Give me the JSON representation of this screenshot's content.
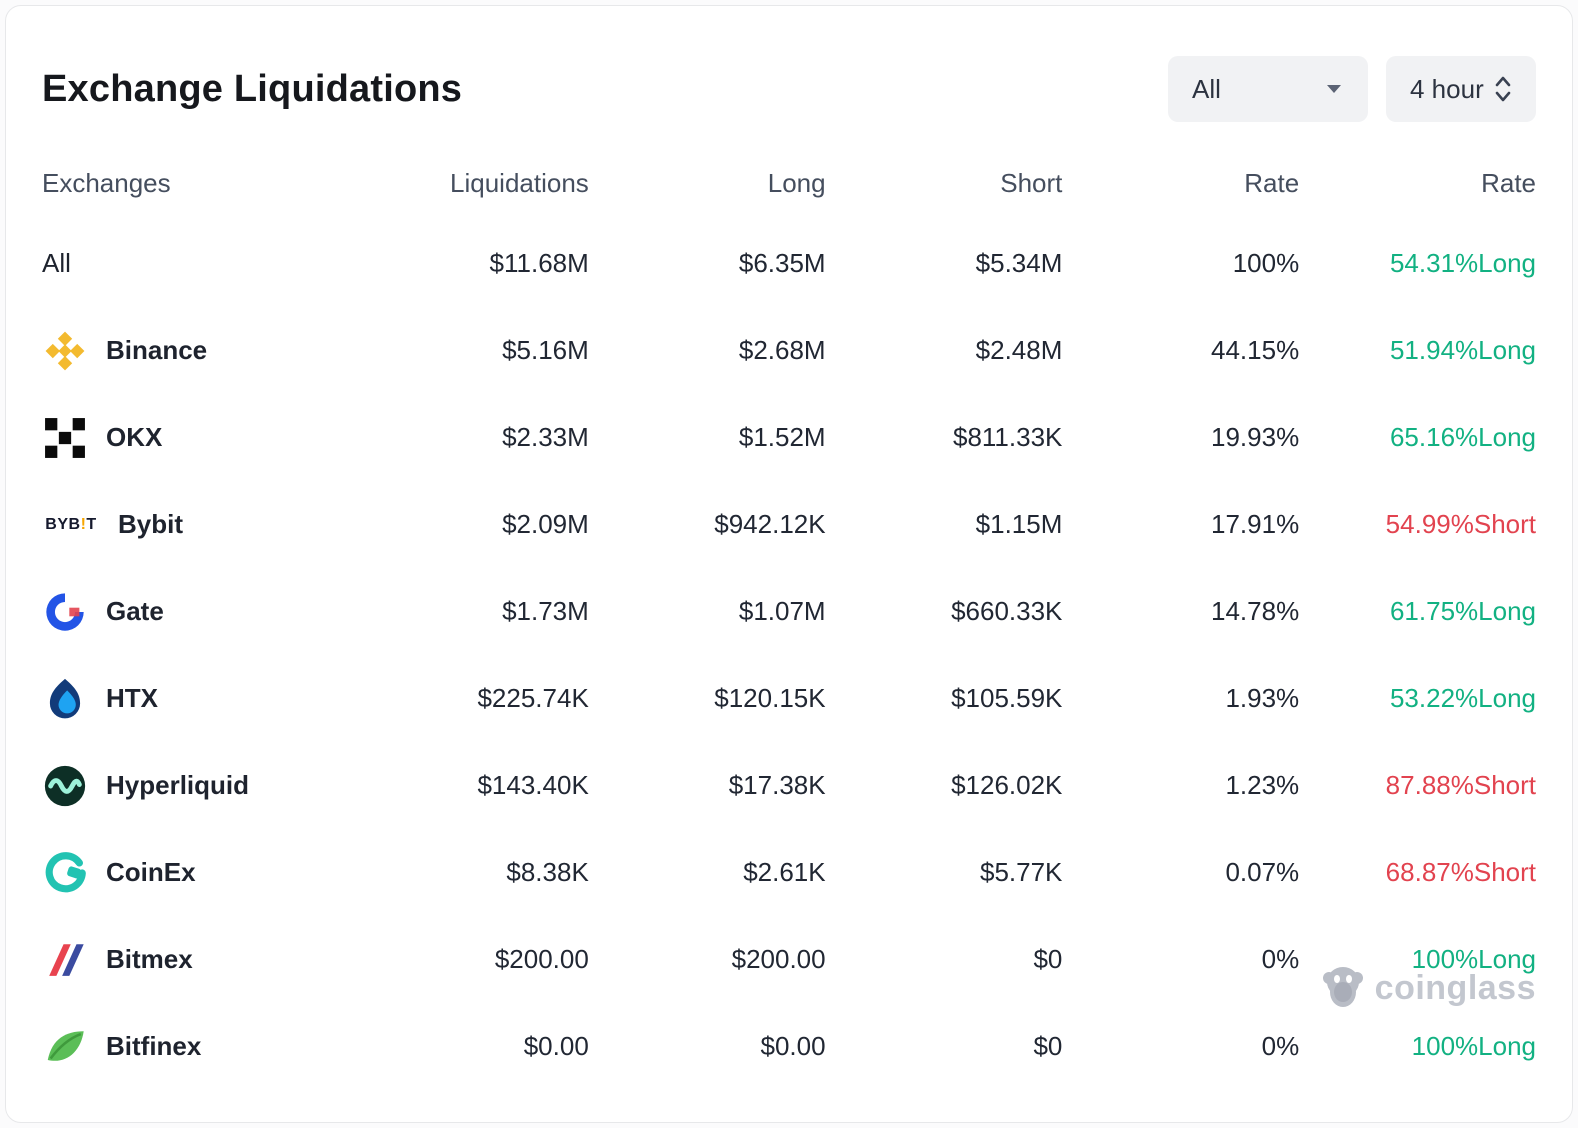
{
  "header": {
    "title": "Exchange Liquidations",
    "filter_dropdown": {
      "value": "All",
      "icon": "chevron-down-icon"
    },
    "interval_dropdown": {
      "value": "4 hour",
      "icon": "up-down-chevrons-icon"
    }
  },
  "colors": {
    "long": "#12b182",
    "short": "#e2434f",
    "accent_binance": "#f3ba2f",
    "accent_bybit": "#f7a600",
    "accent_gate": "#2354e6",
    "accent_htx": "#1ea3f2",
    "accent_hyperliquid": "#0d2f26",
    "accent_coinex": "#22c3b2",
    "accent_bitmex_red": "#e8434f",
    "accent_bitmex_blue": "#3b4ba0",
    "accent_bitfinex": "#5bbe57",
    "watermark_gray": "#c3c7cf"
  },
  "icons": {
    "bybit_logo_text": "BYB!T"
  },
  "table": {
    "columns": [
      "Exchanges",
      "Liquidations",
      "Long",
      "Short",
      "Rate",
      "Rate"
    ],
    "rows": [
      {
        "exchange": "All",
        "icon": null,
        "plain": true,
        "liquidations": "$11.68M",
        "long": "$6.35M",
        "short": "$5.34M",
        "rate": "100%",
        "long_short_rate": "54.31%Long",
        "side": "long"
      },
      {
        "exchange": "Binance",
        "icon": "binance-icon",
        "plain": false,
        "liquidations": "$5.16M",
        "long": "$2.68M",
        "short": "$2.48M",
        "rate": "44.15%",
        "long_short_rate": "51.94%Long",
        "side": "long"
      },
      {
        "exchange": "OKX",
        "icon": "okx-icon",
        "plain": false,
        "liquidations": "$2.33M",
        "long": "$1.52M",
        "short": "$811.33K",
        "rate": "19.93%",
        "long_short_rate": "65.16%Long",
        "side": "long"
      },
      {
        "exchange": "Bybit",
        "icon": "bybit-icon",
        "plain": false,
        "liquidations": "$2.09M",
        "long": "$942.12K",
        "short": "$1.15M",
        "rate": "17.91%",
        "long_short_rate": "54.99%Short",
        "side": "short"
      },
      {
        "exchange": "Gate",
        "icon": "gate-icon",
        "plain": false,
        "liquidations": "$1.73M",
        "long": "$1.07M",
        "short": "$660.33K",
        "rate": "14.78%",
        "long_short_rate": "61.75%Long",
        "side": "long"
      },
      {
        "exchange": "HTX",
        "icon": "htx-icon",
        "plain": false,
        "liquidations": "$225.74K",
        "long": "$120.15K",
        "short": "$105.59K",
        "rate": "1.93%",
        "long_short_rate": "53.22%Long",
        "side": "long"
      },
      {
        "exchange": "Hyperliquid",
        "icon": "hyperliquid-icon",
        "plain": false,
        "liquidations": "$143.40K",
        "long": "$17.38K",
        "short": "$126.02K",
        "rate": "1.23%",
        "long_short_rate": "87.88%Short",
        "side": "short"
      },
      {
        "exchange": "CoinEx",
        "icon": "coinex-icon",
        "plain": false,
        "liquidations": "$8.38K",
        "long": "$2.61K",
        "short": "$5.77K",
        "rate": "0.07%",
        "long_short_rate": "68.87%Short",
        "side": "short"
      },
      {
        "exchange": "Bitmex",
        "icon": "bitmex-icon",
        "plain": false,
        "liquidations": "$200.00",
        "long": "$200.00",
        "short": "$0",
        "rate": "0%",
        "long_short_rate": "100%Long",
        "side": "long"
      },
      {
        "exchange": "Bitfinex",
        "icon": "bitfinex-icon",
        "plain": false,
        "liquidations": "$0.00",
        "long": "$0.00",
        "short": "$0",
        "rate": "0%",
        "long_short_rate": "100%Long",
        "side": "long"
      }
    ]
  },
  "watermark": {
    "label": "coinglass"
  }
}
